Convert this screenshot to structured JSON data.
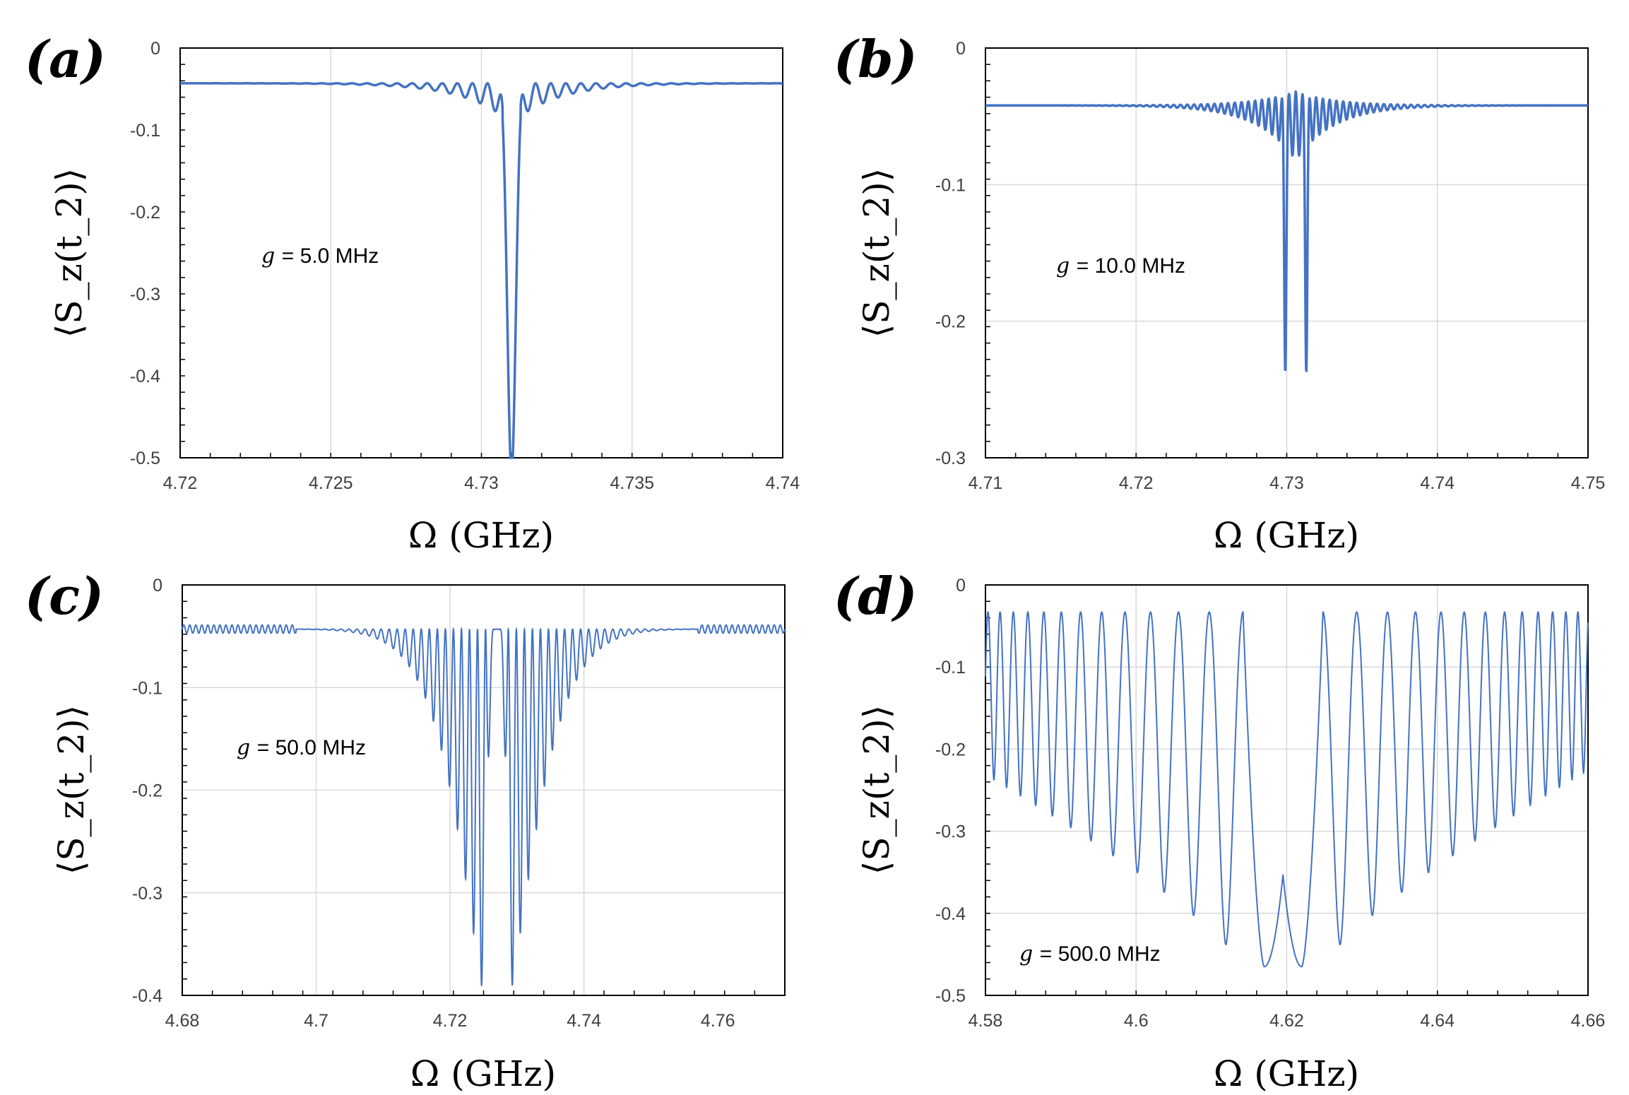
{
  "chart_data": [
    {
      "type": "line",
      "panel_label": "(a)",
      "xlabel": "Ω (GHz)",
      "ylabel": "⟨S_z(t_2)⟩",
      "annotation": {
        "var": "g",
        "text": "= 5.0 MHz"
      },
      "xlim": [
        4.72,
        4.74
      ],
      "ylim": [
        -0.5,
        0
      ],
      "x_ticks": [
        4.72,
        4.725,
        4.73,
        4.735,
        4.74
      ],
      "x_tick_labels": [
        "4.72",
        "4.725",
        "4.73",
        "4.735",
        "4.74"
      ],
      "y_ticks": [
        0,
        -0.1,
        -0.2,
        -0.3,
        -0.4,
        -0.5
      ],
      "y_tick_labels": [
        "0",
        "-0.1",
        "-0.2",
        "-0.3",
        "-0.4",
        "-0.5"
      ],
      "grid": "vertical",
      "series_style": {
        "color": "#4472c4"
      },
      "curve_model": {
        "center": 4.731,
        "baseline": -0.043,
        "depth": 0.47,
        "core_width": 0.00018,
        "fringe_period": 0.0005,
        "fringe_amp": 0.04,
        "fringe_decay": 0.0015,
        "fringe_start": 0.0003
      },
      "series": [
        {
          "x": [
            4.72,
            4.728,
            4.7295,
            4.73,
            4.7305,
            4.731,
            4.7316,
            4.732,
            4.7325,
            4.734,
            4.74
          ],
          "y": [
            -0.042,
            -0.045,
            -0.058,
            -0.08,
            -0.035,
            -0.47,
            -0.035,
            -0.08,
            -0.058,
            -0.045,
            -0.042
          ]
        }
      ]
    },
    {
      "type": "line",
      "panel_label": "(b)",
      "xlabel": "Ω (GHz)",
      "ylabel": "⟨S_z(t_2)⟩",
      "annotation": {
        "var": "g",
        "text": "= 10.0 MHz"
      },
      "xlim": [
        4.71,
        4.75
      ],
      "ylim": [
        -0.3,
        0
      ],
      "x_ticks": [
        4.71,
        4.72,
        4.73,
        4.74,
        4.75
      ],
      "x_tick_labels": [
        "4.71",
        "4.72",
        "4.73",
        "4.74",
        "4.75"
      ],
      "y_ticks": [
        0,
        -0.1,
        -0.2,
        -0.3
      ],
      "y_tick_labels": [
        "0",
        "-0.1",
        "-0.2",
        "-0.3"
      ],
      "grid": "both",
      "series_style": {
        "color": "#4472c4"
      },
      "curve_model": {
        "centers": [
          4.7299,
          4.7313
        ],
        "baseline": -0.042,
        "depth": 0.207,
        "core_width": 0.0001,
        "fringe_period": 0.00045,
        "fringe_amp": 0.05,
        "fringe_decay": 0.0025,
        "fringe_start": 0.0003
      },
      "series": [
        {
          "x": [
            4.71,
            4.725,
            4.728,
            4.7299,
            4.7306,
            4.7313,
            4.734,
            4.75
          ],
          "y": [
            -0.042,
            -0.045,
            -0.055,
            -0.207,
            -0.033,
            -0.207,
            -0.05,
            -0.042
          ]
        }
      ]
    },
    {
      "type": "line",
      "panel_label": "(c)",
      "xlabel": "Ω (GHz)",
      "ylabel": "⟨S_z(t_2)⟩",
      "annotation": {
        "var": "g",
        "text": "= 50.0 MHz"
      },
      "xlim": [
        4.68,
        4.77
      ],
      "ylim": [
        -0.4,
        0
      ],
      "x_ticks": [
        4.68,
        4.7,
        4.72,
        4.74,
        4.76
      ],
      "x_tick_labels": [
        "4.68",
        "4.7",
        "4.72",
        "4.74",
        "4.76"
      ],
      "y_ticks": [
        0,
        -0.1,
        -0.2,
        -0.3,
        -0.4
      ],
      "y_tick_labels": [
        "0",
        "-0.1",
        "-0.2",
        "-0.3",
        "-0.4"
      ],
      "grid": "both",
      "series_style": {
        "color": "#4472c4"
      },
      "curve_model": {
        "center": 4.727,
        "baseline": -0.043,
        "top": -0.035,
        "envelope_depth": 0.365,
        "envelope_width": 0.006,
        "period": 0.0012,
        "valley_half_gap": 0.0017
      },
      "series": [
        {
          "x": [
            4.68,
            4.7,
            4.715,
            4.7253,
            4.727,
            4.7287,
            4.74,
            4.77
          ],
          "y": [
            -0.043,
            -0.046,
            -0.08,
            -0.363,
            -0.035,
            -0.363,
            -0.09,
            -0.043
          ]
        }
      ]
    },
    {
      "type": "line",
      "panel_label": "(d)",
      "xlabel": "Ω (GHz)",
      "ylabel": "⟨S_z(t_2)⟩",
      "annotation": {
        "var": "g",
        "text": "= 500.0 MHz"
      },
      "xlim": [
        4.58,
        4.66
      ],
      "ylim": [
        -0.5,
        0
      ],
      "x_ticks": [
        4.58,
        4.6,
        4.62,
        4.64,
        4.66
      ],
      "x_tick_labels": [
        "4.58",
        "4.6",
        "4.62",
        "4.64",
        "4.66"
      ],
      "y_ticks": [
        0,
        -0.1,
        -0.2,
        -0.3,
        -0.4,
        -0.5
      ],
      "y_tick_labels": [
        "0",
        "-0.1",
        "-0.2",
        "-0.3",
        "-0.4",
        "-0.5"
      ],
      "grid": "both",
      "series_style": {
        "color": "#4472c4"
      },
      "curve_model": {
        "center": 4.6195,
        "top": -0.033,
        "min_at_center": -0.465,
        "min_at_edge": -0.2,
        "edge_dist": 0.04,
        "gap_half": 0.0053,
        "inner_period": 0.0047,
        "outer_period_edge": 0.00095,
        "central_peak": -0.353
      },
      "series": [
        {
          "x": [
            4.58,
            4.6,
            4.6145,
            4.617,
            4.6195,
            4.622,
            4.6245,
            4.64,
            4.66
          ],
          "y": [
            -0.2,
            -0.36,
            -0.035,
            -0.465,
            -0.353,
            -0.465,
            -0.035,
            -0.36,
            -0.2
          ]
        }
      ]
    }
  ]
}
